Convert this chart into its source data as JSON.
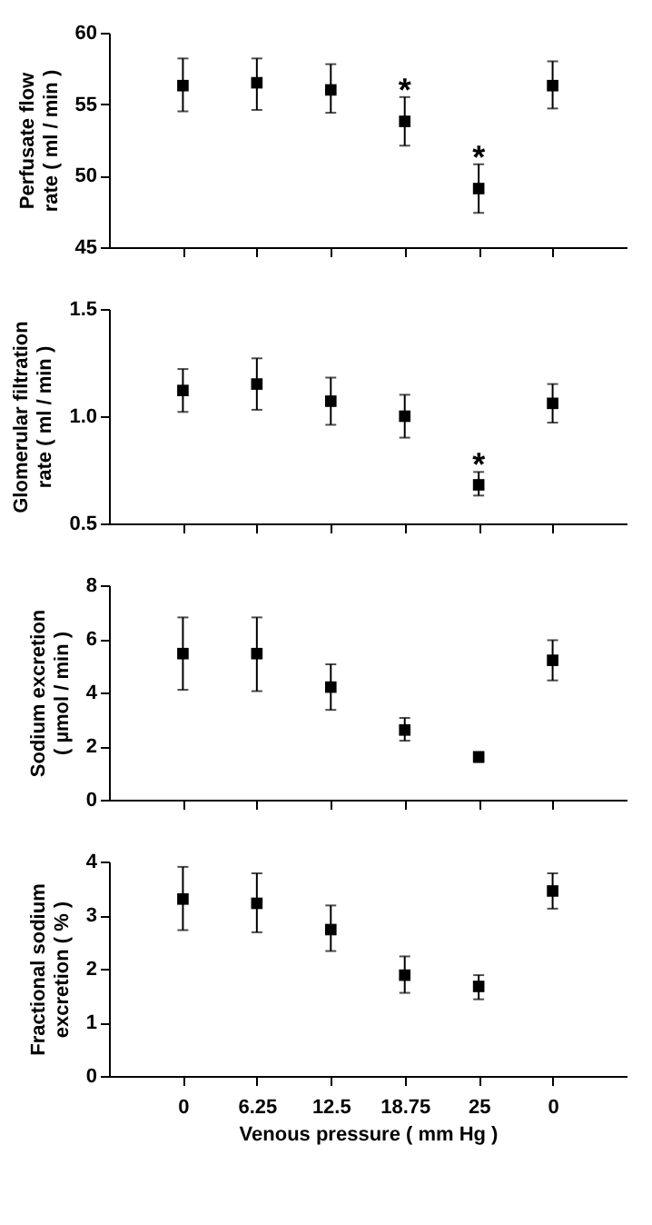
{
  "chart_data": [
    {
      "type": "scatter",
      "categories": [
        "0",
        "6.25",
        "12.5",
        "18.75",
        "25",
        "0"
      ],
      "values": [
        56.3,
        56.5,
        56.0,
        53.8,
        49.1,
        56.3
      ],
      "errors": [
        [
          54.5,
          58.2
        ],
        [
          54.6,
          58.2
        ],
        [
          54.4,
          57.8
        ],
        [
          52.1,
          55.5
        ],
        [
          47.4,
          50.8
        ],
        [
          54.7,
          58.0
        ]
      ],
      "ylabel": "Perfusate flow\nrate ( ml / min )",
      "ylim": [
        45,
        60
      ],
      "yticks": [
        45,
        50,
        55,
        60
      ],
      "marker": "square",
      "tick_labels": "y",
      "annotations": [
        {
          "text": "*",
          "x": "18.75",
          "y": 55.5
        },
        {
          "text": "*",
          "x": "25",
          "y": 50.8
        }
      ]
    },
    {
      "type": "scatter",
      "categories": [
        "0",
        "6.25",
        "12.5",
        "18.75",
        "25",
        "0"
      ],
      "values": [
        1.12,
        1.15,
        1.07,
        1.0,
        0.68,
        1.06
      ],
      "errors": [
        [
          1.02,
          1.22
        ],
        [
          1.03,
          1.27
        ],
        [
          0.96,
          1.18
        ],
        [
          0.9,
          1.1
        ],
        [
          0.63,
          0.74
        ],
        [
          0.97,
          1.15
        ]
      ],
      "ylabel": "Glomerular filtration\nrate ( ml / min )",
      "ylim": [
        0.5,
        1.5
      ],
      "yticks": [
        {
          "value": 0.5,
          "label": "0.5"
        },
        {
          "value": 1.0,
          "label": "1.0"
        },
        {
          "value": 1.5,
          "label": "1.5"
        }
      ],
      "marker": "square",
      "tick_labels": "y",
      "annotations": [
        {
          "text": "*",
          "x": "25",
          "y": 0.74
        }
      ]
    },
    {
      "type": "scatter",
      "categories": [
        "0",
        "6.25",
        "12.5",
        "18.75",
        "25",
        "0"
      ],
      "values": [
        5.45,
        5.45,
        4.2,
        2.6,
        1.6,
        5.2
      ],
      "errors": [
        [
          4.1,
          6.8
        ],
        [
          4.05,
          6.8
        ],
        [
          3.35,
          5.05
        ],
        [
          2.2,
          3.05
        ],
        [
          1.4,
          1.75
        ],
        [
          4.45,
          5.95
        ]
      ],
      "ylabel": "Sodium excretion\n( µmol / min )",
      "ylim": [
        0,
        8
      ],
      "yticks": [
        0,
        2,
        4,
        6,
        8
      ],
      "marker": "square",
      "tick_labels": "y"
    },
    {
      "type": "scatter",
      "categories": [
        "0",
        "6.25",
        "12.5",
        "18.75",
        "25",
        "0"
      ],
      "values": [
        3.3,
        3.22,
        2.73,
        1.88,
        1.67,
        3.45
      ],
      "errors": [
        [
          2.72,
          3.9
        ],
        [
          2.68,
          3.78
        ],
        [
          2.33,
          3.18
        ],
        [
          1.55,
          2.23
        ],
        [
          1.43,
          1.88
        ],
        [
          3.12,
          3.78
        ]
      ],
      "ylabel": "Fractional sodium\nexcretion ( % )",
      "xlabel": "Venous pressure ( mm Hg )",
      "ylim": [
        0,
        4
      ],
      "yticks": [
        0,
        1,
        2,
        3,
        4
      ],
      "marker": "square"
    }
  ]
}
